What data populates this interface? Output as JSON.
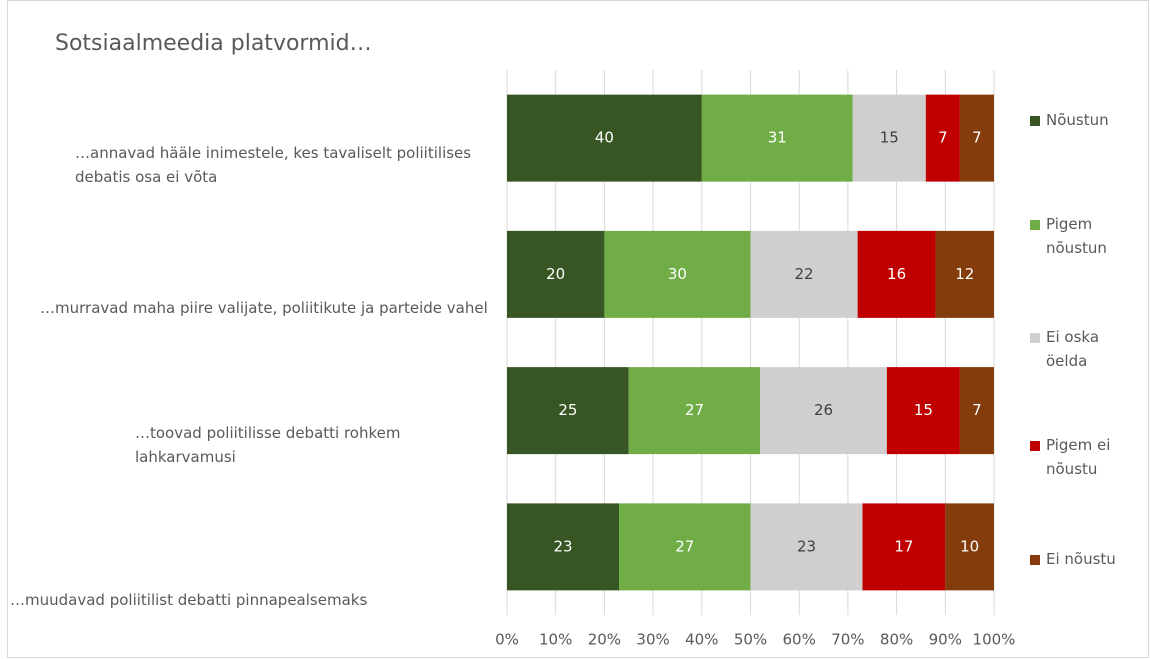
{
  "chart_data": {
    "type": "stacked_barh",
    "title": "Sotsiaalmeedia platvormid…",
    "categories": [
      "…annavad hääle inimestele, kes tavaliselt poliitilises debatis osa ei võta",
      "…murravad maha piire valijate, poliitikute ja parteide vahel",
      "…toovad poliitilisse debatti rohkem lahkarvamusi",
      "…muudavad poliitilist debatti pinnapealsemaks"
    ],
    "series": [
      {
        "name": "Nõustun",
        "color": "#375623",
        "values": [
          40,
          20,
          25,
          23
        ]
      },
      {
        "name": "Pigem nõustun",
        "color": "#70ad47",
        "values": [
          31,
          30,
          27,
          27
        ]
      },
      {
        "name": "Ei oska öelda",
        "color": "#d0cece",
        "values": [
          15,
          22,
          26,
          23
        ]
      },
      {
        "name": "Pigem ei nõustu",
        "color": "#c00000",
        "values": [
          7,
          16,
          15,
          17
        ]
      },
      {
        "name": "Ei nõustu",
        "color": "#843c0c",
        "values": [
          7,
          12,
          7,
          10
        ]
      }
    ],
    "xlim": [
      0,
      100
    ],
    "xticks": [
      {
        "value": 0,
        "label": "0%"
      },
      {
        "value": 10,
        "label": "10%"
      },
      {
        "value": 20,
        "label": "20%"
      },
      {
        "value": 30,
        "label": "30%"
      },
      {
        "value": 40,
        "label": "40%"
      },
      {
        "value": 50,
        "label": "50%"
      },
      {
        "value": 60,
        "label": "60%"
      },
      {
        "value": 70,
        "label": "70%"
      },
      {
        "value": 80,
        "label": "80%"
      },
      {
        "value": 90,
        "label": "90%"
      },
      {
        "value": 100,
        "label": "100%"
      }
    ],
    "grid": true,
    "legend": "right"
  }
}
